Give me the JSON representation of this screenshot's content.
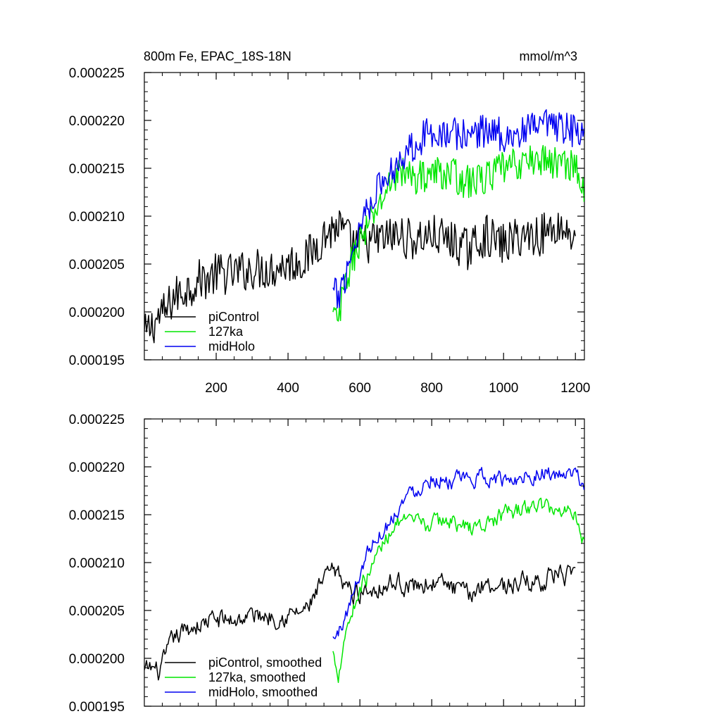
{
  "chart_data": [
    {
      "type": "line",
      "title_left": "800m Fe, EPAC_18S-18N",
      "title_right": "mmol/m^3",
      "xlabel": "",
      "ylabel": "",
      "xlim": [
        0,
        1225
      ],
      "ylim": [
        0.000195,
        0.000225
      ],
      "xticks": [
        200,
        400,
        600,
        800,
        1000,
        1200
      ],
      "xtick_labels": [
        "200",
        "400",
        "600",
        "800",
        "1000",
        "1200"
      ],
      "yticks": [
        0.000195,
        0.0002,
        0.000205,
        0.00021,
        0.000215,
        0.00022,
        0.000225
      ],
      "ytick_labels": [
        "0.000195",
        "0.000200",
        "0.000205",
        "0.000210",
        "0.000215",
        "0.000220",
        "0.000225"
      ],
      "show_x_tick_labels": true,
      "legend_position": "bottom-left",
      "series": [
        {
          "name": "piControl",
          "label": "piControl",
          "color": "#000000",
          "noise": 2.2e-06,
          "x": [
            0,
            20,
            40,
            60,
            80,
            100,
            120,
            140,
            160,
            180,
            200,
            250,
            300,
            350,
            400,
            450,
            500,
            520,
            540,
            560,
            580,
            600,
            650,
            700,
            750,
            800,
            850,
            900,
            950,
            1000,
            1050,
            1100,
            1150,
            1200
          ],
          "values": [
            0.0001975,
            0.0001985,
            0.0001995,
            0.0002,
            0.0002015,
            0.000202,
            0.0002025,
            0.000203,
            0.0002035,
            0.0002035,
            0.000204,
            0.000204,
            0.0002045,
            0.0002045,
            0.000205,
            0.0002055,
            0.000208,
            0.0002085,
            0.000209,
            0.000208,
            0.000207,
            0.000207,
            0.0002075,
            0.000208,
            0.0002075,
            0.000208,
            0.0002075,
            0.0002065,
            0.000208,
            0.000207,
            0.000208,
            0.000208,
            0.000209,
            0.000208
          ]
        },
        {
          "name": "127ka",
          "label": "127ka",
          "color": "#00e600",
          "noise": 1.8e-06,
          "x": [
            525,
            540,
            560,
            580,
            600,
            620,
            650,
            680,
            700,
            720,
            750,
            800,
            850,
            900,
            950,
            1000,
            1050,
            1100,
            1150,
            1200,
            1225
          ],
          "values": [
            0.0001995,
            0.000199,
            0.000203,
            0.0002055,
            0.0002075,
            0.0002085,
            0.000211,
            0.000213,
            0.0002145,
            0.0002145,
            0.000214,
            0.0002145,
            0.0002145,
            0.0002135,
            0.000214,
            0.000215,
            0.0002155,
            0.000216,
            0.0002155,
            0.0002155,
            0.000212
          ]
        },
        {
          "name": "midHolo",
          "label": "midHolo",
          "color": "#0000f0",
          "noise": 1.8e-06,
          "x": [
            525,
            540,
            560,
            580,
            600,
            620,
            650,
            680,
            700,
            720,
            750,
            800,
            850,
            900,
            950,
            1000,
            1050,
            1100,
            1150,
            1200,
            1225
          ],
          "values": [
            0.000202,
            0.0002015,
            0.000204,
            0.0002065,
            0.000209,
            0.000211,
            0.000213,
            0.000214,
            0.0002155,
            0.0002165,
            0.0002175,
            0.000219,
            0.0002185,
            0.0002185,
            0.000219,
            0.0002185,
            0.0002185,
            0.0002195,
            0.000219,
            0.000219,
            0.000218
          ]
        }
      ]
    },
    {
      "type": "line",
      "title_left": "",
      "title_right": "",
      "xlabel": "",
      "ylabel": "",
      "xlim": [
        0,
        1225
      ],
      "ylim": [
        0.000195,
        0.000225
      ],
      "xticks": [
        200,
        400,
        600,
        800,
        1000,
        1200
      ],
      "xtick_labels": [],
      "yticks": [
        0.000195,
        0.0002,
        0.000205,
        0.00021,
        0.000215,
        0.00022,
        0.000225
      ],
      "ytick_labels": [
        "0.000195",
        "0.000200",
        "0.000205",
        "0.000210",
        "0.000215",
        "0.000220",
        "0.000225"
      ],
      "show_x_tick_labels": false,
      "legend_position": "bottom-left",
      "series": [
        {
          "name": "piControl, smoothed",
          "label": "piControl, smoothed",
          "color": "#000000",
          "noise": 1.2e-06,
          "x": [
            0,
            20,
            40,
            60,
            80,
            100,
            120,
            140,
            160,
            180,
            200,
            250,
            300,
            350,
            400,
            450,
            500,
            520,
            540,
            560,
            580,
            600,
            650,
            700,
            750,
            800,
            850,
            900,
            950,
            1000,
            1050,
            1100,
            1150,
            1200
          ],
          "values": [
            0.0001985,
            0.000199,
            0.0001985,
            0.0002,
            0.000202,
            0.0002025,
            0.000203,
            0.0002035,
            0.0002035,
            0.000204,
            0.000204,
            0.000204,
            0.0002045,
            0.0002045,
            0.0002045,
            0.000205,
            0.000208,
            0.000209,
            0.0002085,
            0.000208,
            0.0002065,
            0.000207,
            0.0002075,
            0.000208,
            0.0002075,
            0.000208,
            0.0002075,
            0.0002065,
            0.000208,
            0.0002075,
            0.000208,
            0.000208,
            0.000209,
            0.000208
          ]
        },
        {
          "name": "127ka, smoothed",
          "label": "127ka, smoothed",
          "color": "#00e600",
          "noise": 1e-06,
          "x": [
            525,
            540,
            560,
            580,
            600,
            620,
            650,
            680,
            700,
            720,
            750,
            800,
            850,
            900,
            950,
            1000,
            1050,
            1100,
            1150,
            1200,
            1225
          ],
          "values": [
            0.0002005,
            0.0001985,
            0.000203,
            0.000205,
            0.0002075,
            0.0002085,
            0.000211,
            0.000213,
            0.0002145,
            0.000214,
            0.000214,
            0.000214,
            0.0002145,
            0.0002135,
            0.000214,
            0.000215,
            0.0002155,
            0.000216,
            0.0002155,
            0.0002155,
            0.000212
          ]
        },
        {
          "name": "midHolo, smoothed",
          "label": "midHolo, smoothed",
          "color": "#0000f0",
          "noise": 1e-06,
          "x": [
            525,
            540,
            560,
            580,
            600,
            620,
            650,
            680,
            700,
            720,
            750,
            800,
            850,
            900,
            950,
            1000,
            1050,
            1100,
            1150,
            1200,
            1225
          ],
          "values": [
            0.000202,
            0.0002025,
            0.0002045,
            0.0002065,
            0.000209,
            0.000211,
            0.000213,
            0.000214,
            0.0002155,
            0.0002165,
            0.0002175,
            0.000219,
            0.0002185,
            0.0002185,
            0.000219,
            0.0002185,
            0.000219,
            0.0002195,
            0.000219,
            0.000219,
            0.000218
          ]
        }
      ]
    }
  ]
}
